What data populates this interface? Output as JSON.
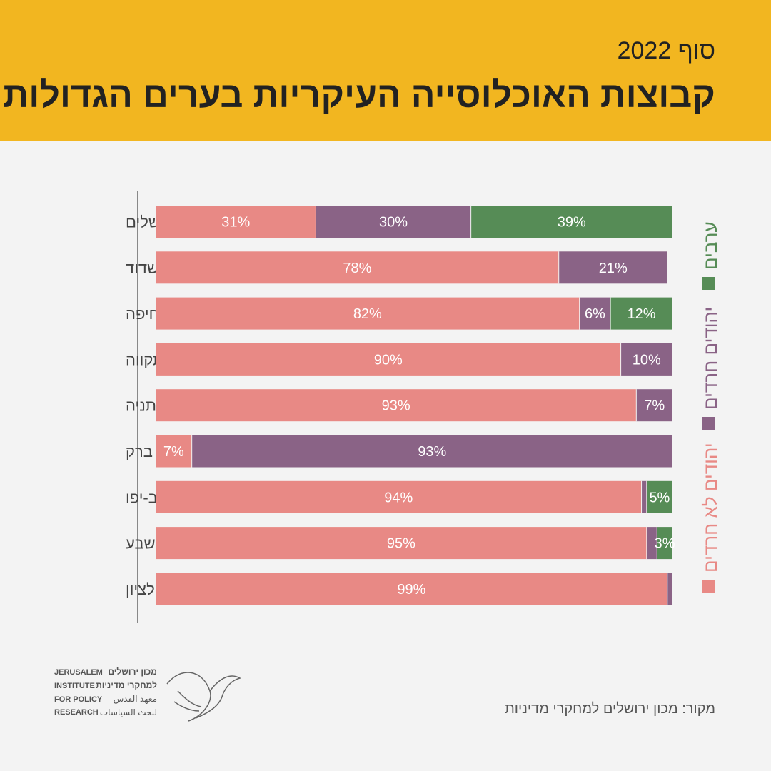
{
  "header": {
    "subtitle": "סוף 2022",
    "title": "קבוצות האוכלוסייה העיקריות בערים הגדולות"
  },
  "colors": {
    "header_bg": "#f2b620",
    "non_haredi": "#e88985",
    "haredi": "#8a6386",
    "arab": "#568c56"
  },
  "legend": [
    {
      "label": "יהודים לא חרדים",
      "color": "#e88985"
    },
    {
      "label": "יהודים חרדים",
      "color": "#8a6386"
    },
    {
      "label": "ערבים",
      "color": "#568c56"
    }
  ],
  "chart_data": {
    "type": "bar",
    "orientation": "horizontal",
    "stacked": true,
    "xlim": [
      0,
      100
    ],
    "categories": [
      "ירושלים",
      "אשדוד",
      "חיפה",
      "פתח תקווה",
      "נתניה",
      "בני ברק",
      "תל אביב-יפו",
      "באר שבע",
      "ראשון לציון"
    ],
    "series": [
      {
        "name": "יהודים לא חרדים",
        "color": "#e88985",
        "values": [
          31,
          78,
          82,
          90,
          93,
          7,
          94,
          95,
          99
        ]
      },
      {
        "name": "יהודים חרדים",
        "color": "#8a6386",
        "values": [
          30,
          21,
          6,
          10,
          7,
          93,
          1,
          2,
          1
        ]
      },
      {
        "name": "ערבים",
        "color": "#568c56",
        "values": [
          39,
          0,
          12,
          0,
          0,
          0,
          5,
          3,
          0
        ]
      }
    ],
    "data_labels": [
      [
        "31%",
        "30%",
        "39%"
      ],
      [
        "78%",
        "21%",
        ""
      ],
      [
        "82%",
        "6%",
        "12%"
      ],
      [
        "90%",
        "10%",
        ""
      ],
      [
        "93%",
        "7%",
        ""
      ],
      [
        "7%",
        "93%",
        ""
      ],
      [
        "94%",
        "",
        "5%"
      ],
      [
        "95%",
        "",
        "3%"
      ],
      [
        "99%",
        "",
        ""
      ]
    ],
    "legend_position": "right"
  },
  "source": "מקור: מכון ירושלים למחקרי מדיניות",
  "logo": {
    "en_lines": [
      "JERUSALEM",
      "INSTITUTE",
      "FOR POLICY",
      "RESEARCH"
    ],
    "he_lines": [
      "מכון ירושלים",
      "למחקרי מדיניות"
    ],
    "ar_lines": [
      "معهد القدس",
      "لبحث السياسات"
    ]
  }
}
